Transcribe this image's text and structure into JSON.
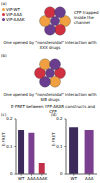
{
  "panels": [
    {
      "label": "(a)",
      "legend": [
        {
          "name": "VIP-WT",
          "color": "#f0a040"
        },
        {
          "name": "VIP-AAA",
          "color": "#d03040"
        },
        {
          "name": "VIP-AAAK",
          "color": "#6a3d8f"
        }
      ],
      "annotation": "CFP trapped inside the channel",
      "caption": "One opened by \"nonsteroidal\" interaction with XXX drugs"
    },
    {
      "label": "(b)",
      "caption": "One opened by \"nonsteroidal\" interaction with SIB drugs"
    }
  ],
  "chart_data": [
    {
      "panel": "(c)",
      "type": "bar",
      "title": "E-FRET between YFP-AKAR constructs and CFP",
      "ylabel": "E-FRET",
      "categories": [
        "WT",
        "AAA",
        "AAAK"
      ],
      "values": [
        0.16,
        0.15,
        0.04
      ],
      "colors": [
        "#3b2a5a",
        "#7b3f8f",
        "#c0304a"
      ],
      "ylim": [
        0,
        0.2
      ],
      "yticks": [
        0,
        0.1,
        0.2
      ]
    },
    {
      "panel": "(d)",
      "type": "bar",
      "ylabel": "E-FRET",
      "categories": [
        "WT",
        "AAA"
      ],
      "values": [
        0.17,
        0.16
      ],
      "colors": [
        "#3b2a5a",
        "#7b3f8f"
      ],
      "ylim": [
        0,
        0.2
      ],
      "yticks": [
        0,
        0.1,
        0.2
      ]
    }
  ]
}
